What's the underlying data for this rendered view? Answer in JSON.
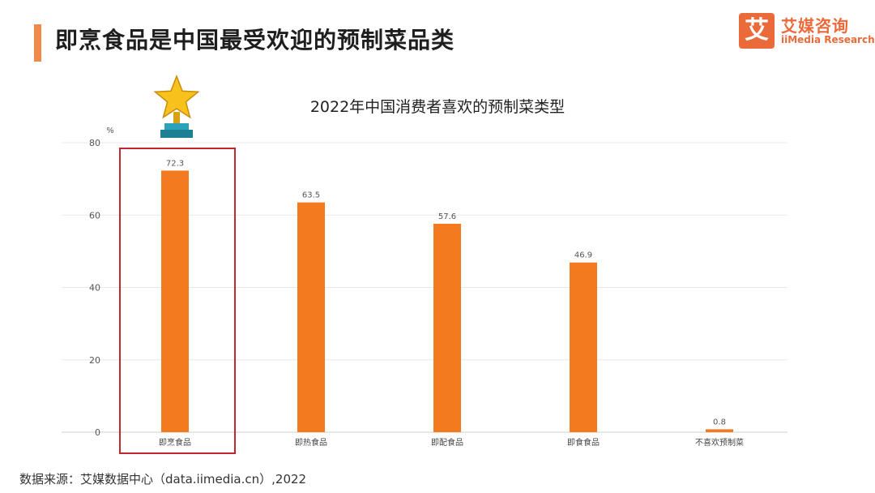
{
  "page": {
    "title": "即烹食品是中国最受欢迎的预制菜品类",
    "source": "数据来源：艾媒数据中心（data.iimedia.cn）,2022"
  },
  "logo": {
    "mark": "艾",
    "name": "艾媒咨询",
    "sub": "iiMedia Research"
  },
  "colors": {
    "accent": "#f08a4b",
    "bar": "#f47a20",
    "highlight_box": "#c0282e",
    "grid": "#e8e8e8"
  },
  "icons": {
    "award": "trophy-star-icon"
  },
  "chart_data": {
    "type": "bar",
    "title": "2022年中国消费者喜欢的预制菜类型",
    "ylabel": "%",
    "xlabel": "",
    "ylim": [
      0,
      80
    ],
    "yticks": [
      0,
      20,
      40,
      60,
      80
    ],
    "grid": true,
    "categories": [
      "即烹食品",
      "即热食品",
      "即配食品",
      "即食食品",
      "不喜欢预制菜"
    ],
    "values": [
      72.3,
      63.5,
      57.6,
      46.9,
      0.8
    ],
    "highlight_index": 0
  }
}
